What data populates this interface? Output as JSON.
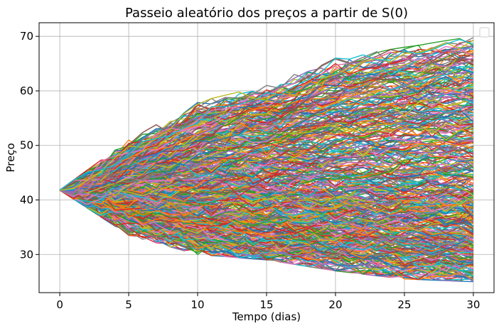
{
  "chart_data": {
    "type": "line",
    "title": "Passeio aleatório dos preços a partir de S(0)",
    "xlabel": "Tempo (dias)",
    "ylabel": "Preço",
    "xlim": [
      -1.5,
      31.5
    ],
    "ylim": [
      23,
      72.5
    ],
    "x_ticks": [
      0,
      5,
      10,
      15,
      20,
      25,
      30
    ],
    "y_ticks": [
      30,
      40,
      50,
      60,
      70
    ],
    "grid": true,
    "legend": {
      "placement": "top-right",
      "entries": []
    },
    "start_price": 41.8,
    "days": 30,
    "n_series_drawn": 480,
    "envelope": {
      "x": [
        0,
        5,
        10,
        15,
        20,
        25,
        30
      ],
      "upper": [
        41.8,
        51,
        58,
        61,
        66,
        68,
        70
      ],
      "lower": [
        41.8,
        33.5,
        30,
        29,
        27,
        25.5,
        25
      ]
    },
    "colors": [
      "#1f77b4",
      "#ff7f0e",
      "#2ca02c",
      "#d62728",
      "#9467bd",
      "#8c564b",
      "#e377c2",
      "#7f7f7f",
      "#bcbd22",
      "#17becf"
    ]
  }
}
